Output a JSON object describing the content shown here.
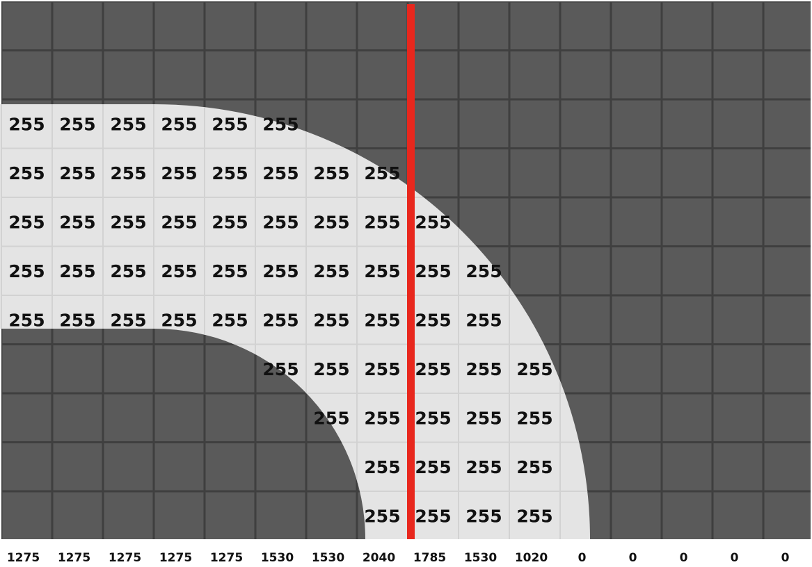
{
  "grid": {
    "rows": 11,
    "cols": 16,
    "cells": [
      [
        null,
        null,
        null,
        null,
        null,
        null,
        null,
        null,
        null,
        null,
        null,
        null,
        null,
        null,
        null,
        null
      ],
      [
        null,
        null,
        null,
        null,
        null,
        null,
        null,
        null,
        null,
        null,
        null,
        null,
        null,
        null,
        null,
        null
      ],
      [
        "255",
        "255",
        "255",
        "255",
        "255",
        "255",
        null,
        null,
        null,
        null,
        null,
        null,
        null,
        null,
        null,
        null
      ],
      [
        "255",
        "255",
        "255",
        "255",
        "255",
        "255",
        "255",
        "255",
        null,
        null,
        null,
        null,
        null,
        null,
        null,
        null
      ],
      [
        "255",
        "255",
        "255",
        "255",
        "255",
        "255",
        "255",
        "255",
        "255",
        null,
        null,
        null,
        null,
        null,
        null,
        null
      ],
      [
        "255",
        "255",
        "255",
        "255",
        "255",
        "255",
        "255",
        "255",
        "255",
        "255",
        null,
        null,
        null,
        null,
        null,
        null
      ],
      [
        "255",
        "255",
        "255",
        "255",
        "255",
        "255",
        "255",
        "255",
        "255",
        "255",
        null,
        null,
        null,
        null,
        null,
        null
      ],
      [
        null,
        null,
        null,
        null,
        null,
        "255",
        "255",
        "255",
        "255",
        "255",
        "255",
        null,
        null,
        null,
        null,
        null
      ],
      [
        null,
        null,
        null,
        null,
        null,
        null,
        "255",
        "255",
        "255",
        "255",
        "255",
        null,
        null,
        null,
        null,
        null
      ],
      [
        null,
        null,
        null,
        null,
        null,
        null,
        null,
        "255",
        "255",
        "255",
        "255",
        null,
        null,
        null,
        null,
        null
      ],
      [
        null,
        null,
        null,
        null,
        null,
        null,
        null,
        "255",
        "255",
        "255",
        "255",
        null,
        null,
        null,
        null,
        null
      ]
    ]
  },
  "column_sums": [
    "1275",
    "1275",
    "1275",
    "1275",
    "1275",
    "1530",
    "1530",
    "2040",
    "1785",
    "1530",
    "1020",
    "0",
    "0",
    "0",
    "0",
    "0"
  ],
  "colors": {
    "dark_cell": "#5a5a5a",
    "grid_line": "#3f3f3f",
    "light_shape": "#e4e4e4",
    "light_grid_line": "#d2d2d2",
    "marker_line": "#e8271d",
    "text": "#111111"
  }
}
